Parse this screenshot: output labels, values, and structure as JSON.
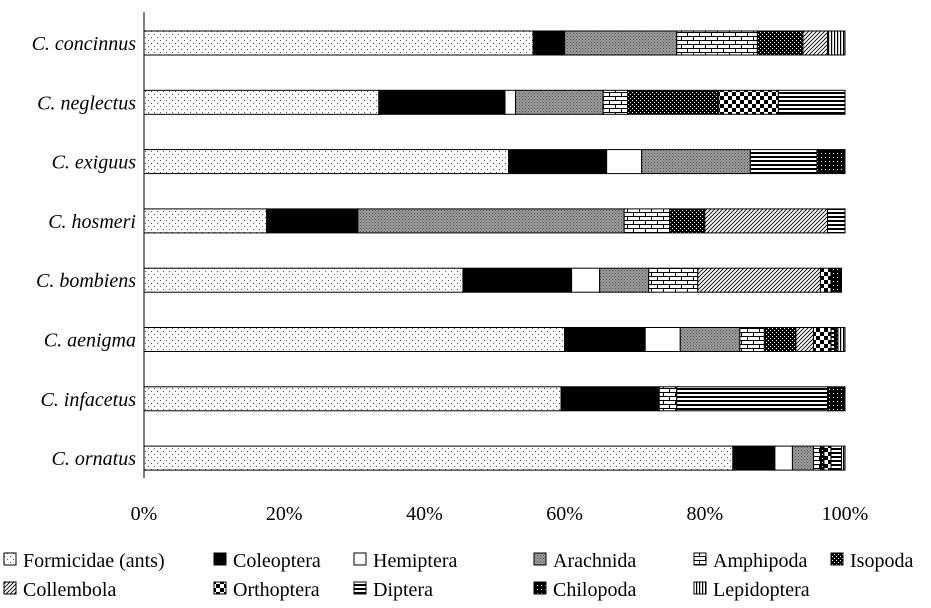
{
  "chart_data": {
    "type": "bar",
    "orientation": "horizontal",
    "stacked": "percent",
    "categories": [
      "C. concinnus",
      "C. neglectus",
      "C. exiguus",
      "C. hosmeri",
      "C. bombiens",
      "C. aenigma",
      "C. infacetus",
      "C. ornatus"
    ],
    "xlim": [
      0,
      100
    ],
    "x_tick_labels": [
      "0%",
      "20%",
      "40%",
      "60%",
      "80%",
      "100%"
    ],
    "legend_position": "bottom",
    "grid": false,
    "series": [
      {
        "name": "Formicidae (ants)",
        "pattern": "dots",
        "values": [
          55.5,
          33.5,
          52.0,
          17.5,
          45.5,
          60.0,
          59.5,
          84.0
        ]
      },
      {
        "name": "Coleoptera",
        "pattern": "solid-black",
        "values": [
          4.5,
          18.0,
          14.0,
          13.0,
          15.5,
          11.5,
          14.0,
          6.0
        ]
      },
      {
        "name": "Hemiptera",
        "pattern": "white",
        "values": [
          0,
          1.5,
          5.0,
          0,
          4.0,
          5.0,
          0,
          2.5
        ]
      },
      {
        "name": "Arachnida",
        "pattern": "dense-grey",
        "values": [
          16.0,
          12.5,
          15.5,
          38.0,
          7.0,
          8.5,
          0,
          3.0
        ]
      },
      {
        "name": "Amphipoda",
        "pattern": "bricks",
        "values": [
          11.5,
          3.5,
          0,
          6.5,
          7.0,
          3.5,
          2.5,
          1.0
        ]
      },
      {
        "name": "Isopoda",
        "pattern": "dense-black-dots",
        "values": [
          6.5,
          13.0,
          0,
          5.0,
          0,
          4.5,
          0,
          0.5
        ]
      },
      {
        "name": "Collembola",
        "pattern": "diagonal",
        "values": [
          3.5,
          0,
          0,
          17.5,
          17.5,
          2.5,
          0,
          0
        ]
      },
      {
        "name": "Orthoptera",
        "pattern": "checker",
        "values": [
          0,
          8.5,
          0,
          0,
          1.5,
          2.5,
          0,
          1.0
        ]
      },
      {
        "name": "Diptera",
        "pattern": "horizontal-lines",
        "values": [
          0,
          9.5,
          9.5,
          2.5,
          0,
          0.5,
          21.5,
          1.5
        ]
      },
      {
        "name": "Chilopoda",
        "pattern": "black-grid",
        "values": [
          0,
          0,
          4.0,
          0,
          1.5,
          0.5,
          2.5,
          0
        ]
      },
      {
        "name": "Lepidoptera",
        "pattern": "vertical-lines",
        "values": [
          2.5,
          0,
          0,
          0,
          0,
          1.0,
          0,
          0.5
        ]
      }
    ]
  }
}
